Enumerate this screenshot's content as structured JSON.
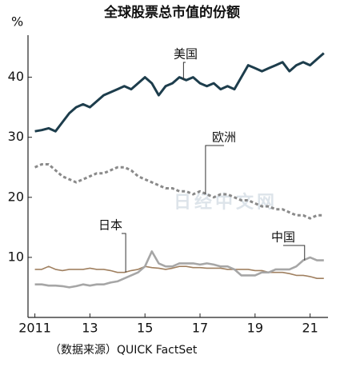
{
  "chart_data": {
    "type": "line",
    "title": "全球股票总市值的份额",
    "ylabel": "%",
    "source": "（数据来源）QUICK FactSet",
    "watermark": "日经中文网",
    "x": [
      2011,
      2011.25,
      2011.5,
      2011.75,
      2012,
      2012.25,
      2012.5,
      2012.75,
      2013,
      2013.25,
      2013.5,
      2013.75,
      2014,
      2014.25,
      2014.5,
      2014.75,
      2015,
      2015.25,
      2015.5,
      2015.75,
      2016,
      2016.25,
      2016.5,
      2016.75,
      2017,
      2017.25,
      2017.5,
      2017.75,
      2018,
      2018.25,
      2018.5,
      2018.75,
      2019,
      2019.25,
      2019.5,
      2019.75,
      2020,
      2020.25,
      2020.5,
      2020.75,
      2021,
      2021.25,
      2021.5
    ],
    "series": [
      {
        "name": "美国",
        "color": "#1d3d4c",
        "width": 3,
        "dashed": false,
        "values": [
          31,
          31.2,
          31.5,
          31,
          32.5,
          34,
          35,
          35.5,
          35,
          36,
          37,
          37.5,
          38,
          38.5,
          38,
          39,
          40,
          39,
          37,
          38.5,
          39,
          40,
          39.5,
          40,
          39,
          38.5,
          39,
          38,
          38.5,
          38,
          40,
          42,
          41.5,
          41,
          41.5,
          42,
          42.5,
          41,
          42,
          42.5,
          42,
          43,
          44
        ]
      },
      {
        "name": "欧洲",
        "color": "#8a8a8a",
        "width": 3,
        "dashed": true,
        "values": [
          25,
          25.5,
          25.5,
          24.5,
          23.5,
          23,
          22.5,
          23,
          23.5,
          24,
          24,
          24.5,
          25,
          25,
          24.5,
          23.5,
          23,
          22.5,
          22,
          21.5,
          21.5,
          21,
          21,
          20.5,
          21,
          20.5,
          20,
          20.5,
          20.5,
          20,
          19.5,
          19.5,
          19,
          18.5,
          18.5,
          18,
          18,
          17.5,
          17,
          17,
          16.5,
          17,
          17
        ]
      },
      {
        "name": "日本",
        "color": "#a08060",
        "width": 1.6,
        "dashed": false,
        "values": [
          8,
          8,
          8.5,
          8,
          7.8,
          8,
          8,
          8,
          8.2,
          8,
          8,
          7.8,
          7.5,
          7.5,
          7.8,
          8,
          8.5,
          8.3,
          8.2,
          8,
          8.2,
          8.5,
          8.5,
          8.3,
          8.3,
          8.2,
          8.2,
          8.2,
          8,
          8,
          8,
          8,
          7.8,
          7.8,
          7.5,
          7.5,
          7.5,
          7.3,
          7,
          7,
          6.8,
          6.5,
          6.5
        ]
      },
      {
        "name": "中国",
        "color": "#a6a6a6",
        "width": 2.6,
        "dashed": false,
        "values": [
          5.5,
          5.5,
          5.3,
          5.3,
          5.2,
          5,
          5.2,
          5.5,
          5.3,
          5.5,
          5.5,
          5.8,
          6,
          6.5,
          7,
          7.5,
          8.5,
          11,
          9,
          8.5,
          8.5,
          9,
          9,
          9,
          8.8,
          9,
          8.8,
          8.5,
          8.5,
          8,
          7,
          7,
          7,
          7.5,
          7.5,
          8,
          8,
          8,
          8.5,
          9.5,
          10,
          9.5,
          9.5
        ]
      }
    ],
    "xlim": [
      2010.75,
      2021.65
    ],
    "xticks": [
      2011,
      {
        "value": 2013,
        "label": "13"
      },
      {
        "value": 2015,
        "label": "15"
      },
      {
        "value": 2017,
        "label": "17"
      },
      {
        "value": 2019,
        "label": "19"
      },
      {
        "value": 2021,
        "label": "21"
      }
    ],
    "ylim": [
      0,
      47
    ],
    "yticks": [
      10,
      20,
      30,
      40
    ],
    "grid": false
  }
}
